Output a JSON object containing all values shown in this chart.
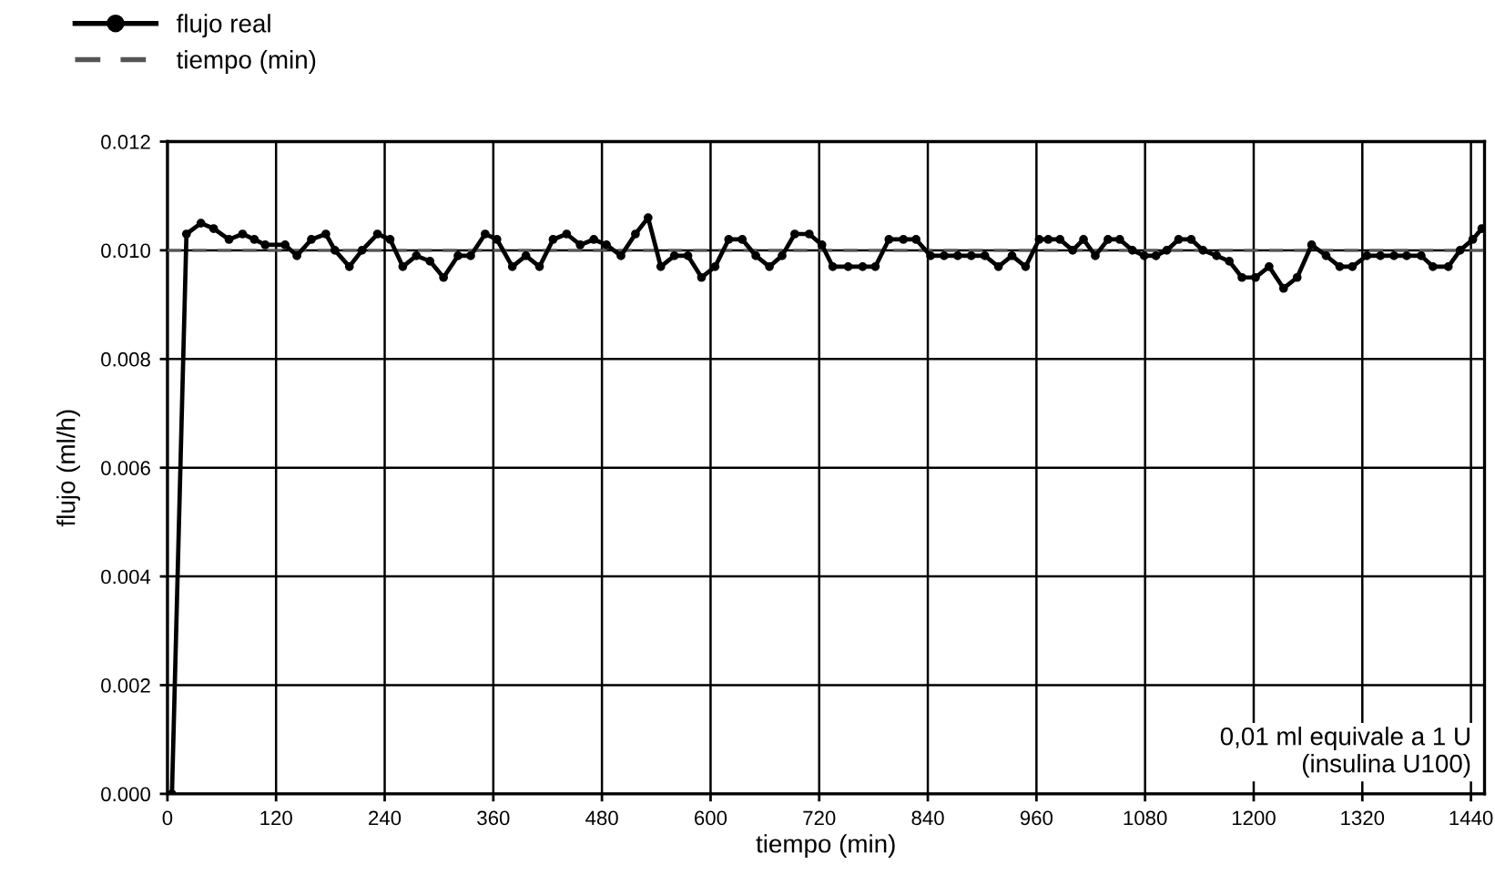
{
  "chart_data": {
    "type": "line",
    "xlabel": "tiempo (min)",
    "ylabel": "flujo (ml/h)",
    "xlim": [
      0,
      1455
    ],
    "ylim": [
      0,
      0.012
    ],
    "xticks": [
      0,
      120,
      240,
      360,
      480,
      600,
      720,
      840,
      960,
      1080,
      1200,
      1320,
      1440
    ],
    "yticks": [
      {
        "value": 0,
        "label": "0.000"
      },
      {
        "value": 0.002,
        "label": "0.002"
      },
      {
        "value": 0.004,
        "label": "0.004"
      },
      {
        "value": 0.006,
        "label": "0.006"
      },
      {
        "value": 0.008,
        "label": "0.008"
      },
      {
        "value": 0.01,
        "label": "0.010"
      },
      {
        "value": 0.012,
        "label": "0.012"
      }
    ],
    "grid": true,
    "legend": "top left",
    "annotations": [
      "0,01 ml equivale a 1 U\n(insulina U100)"
    ],
    "series": [
      {
        "name": "flujo real",
        "color": "#000000",
        "marker": "circle",
        "line_style": "solid",
        "x": [
          5,
          21,
          37,
          51,
          68,
          83,
          96,
          108,
          130,
          143,
          159,
          175,
          185,
          201,
          215,
          232,
          246,
          260,
          275,
          290,
          305,
          321,
          335,
          351,
          364,
          381,
          396,
          411,
          426,
          441,
          456,
          471,
          485,
          501,
          517,
          531,
          545,
          560,
          575,
          590,
          605,
          620,
          635,
          650,
          665,
          679,
          693,
          709,
          723,
          735,
          752,
          768,
          782,
          797,
          813,
          827,
          843,
          858,
          873,
          888,
          903,
          918,
          933,
          948,
          963,
          973,
          986,
          1000,
          1012,
          1025,
          1039,
          1052,
          1066,
          1079,
          1092,
          1104,
          1117,
          1131,
          1144,
          1159,
          1173,
          1187,
          1202,
          1217,
          1233,
          1248,
          1264,
          1280,
          1295,
          1309,
          1325,
          1340,
          1355,
          1369,
          1385,
          1398,
          1415,
          1428,
          1442,
          1452
        ],
        "values": [
          0,
          0.0103,
          0.0105,
          0.0104,
          0.0102,
          0.0103,
          0.0102,
          0.0101,
          0.0101,
          0.0099,
          0.0102,
          0.0103,
          0.01,
          0.0097,
          0.01,
          0.0103,
          0.0102,
          0.0097,
          0.0099,
          0.0098,
          0.0095,
          0.0099,
          0.0099,
          0.0103,
          0.0102,
          0.0097,
          0.0099,
          0.0097,
          0.0102,
          0.0103,
          0.0101,
          0.0102,
          0.0101,
          0.0099,
          0.0103,
          0.0106,
          0.0097,
          0.0099,
          0.0099,
          0.0095,
          0.0097,
          0.0102,
          0.0102,
          0.0099,
          0.0097,
          0.0099,
          0.0103,
          0.0103,
          0.0101,
          0.0097,
          0.0097,
          0.0097,
          0.0097,
          0.0102,
          0.0102,
          0.0102,
          0.0099,
          0.0099,
          0.0099,
          0.0099,
          0.0099,
          0.0097,
          0.0099,
          0.0097,
          0.0102,
          0.0102,
          0.0102,
          0.01,
          0.0102,
          0.0099,
          0.0102,
          0.0102,
          0.01,
          0.0099,
          0.0099,
          0.01,
          0.0102,
          0.0102,
          0.01,
          0.0099,
          0.0098,
          0.0095,
          0.0095,
          0.0097,
          0.0093,
          0.0095,
          0.0101,
          0.0099,
          0.0097,
          0.0097,
          0.0099,
          0.0099,
          0.0099,
          0.0099,
          0.0099,
          0.0097,
          0.0097,
          0.01,
          0.0102,
          0.0104
        ]
      },
      {
        "name": "tiempo (min)",
        "color": "#555555",
        "marker": "none",
        "line_style": "dashed",
        "x": [
          0,
          1455
        ],
        "values": [
          0.01,
          0.01
        ]
      }
    ]
  }
}
